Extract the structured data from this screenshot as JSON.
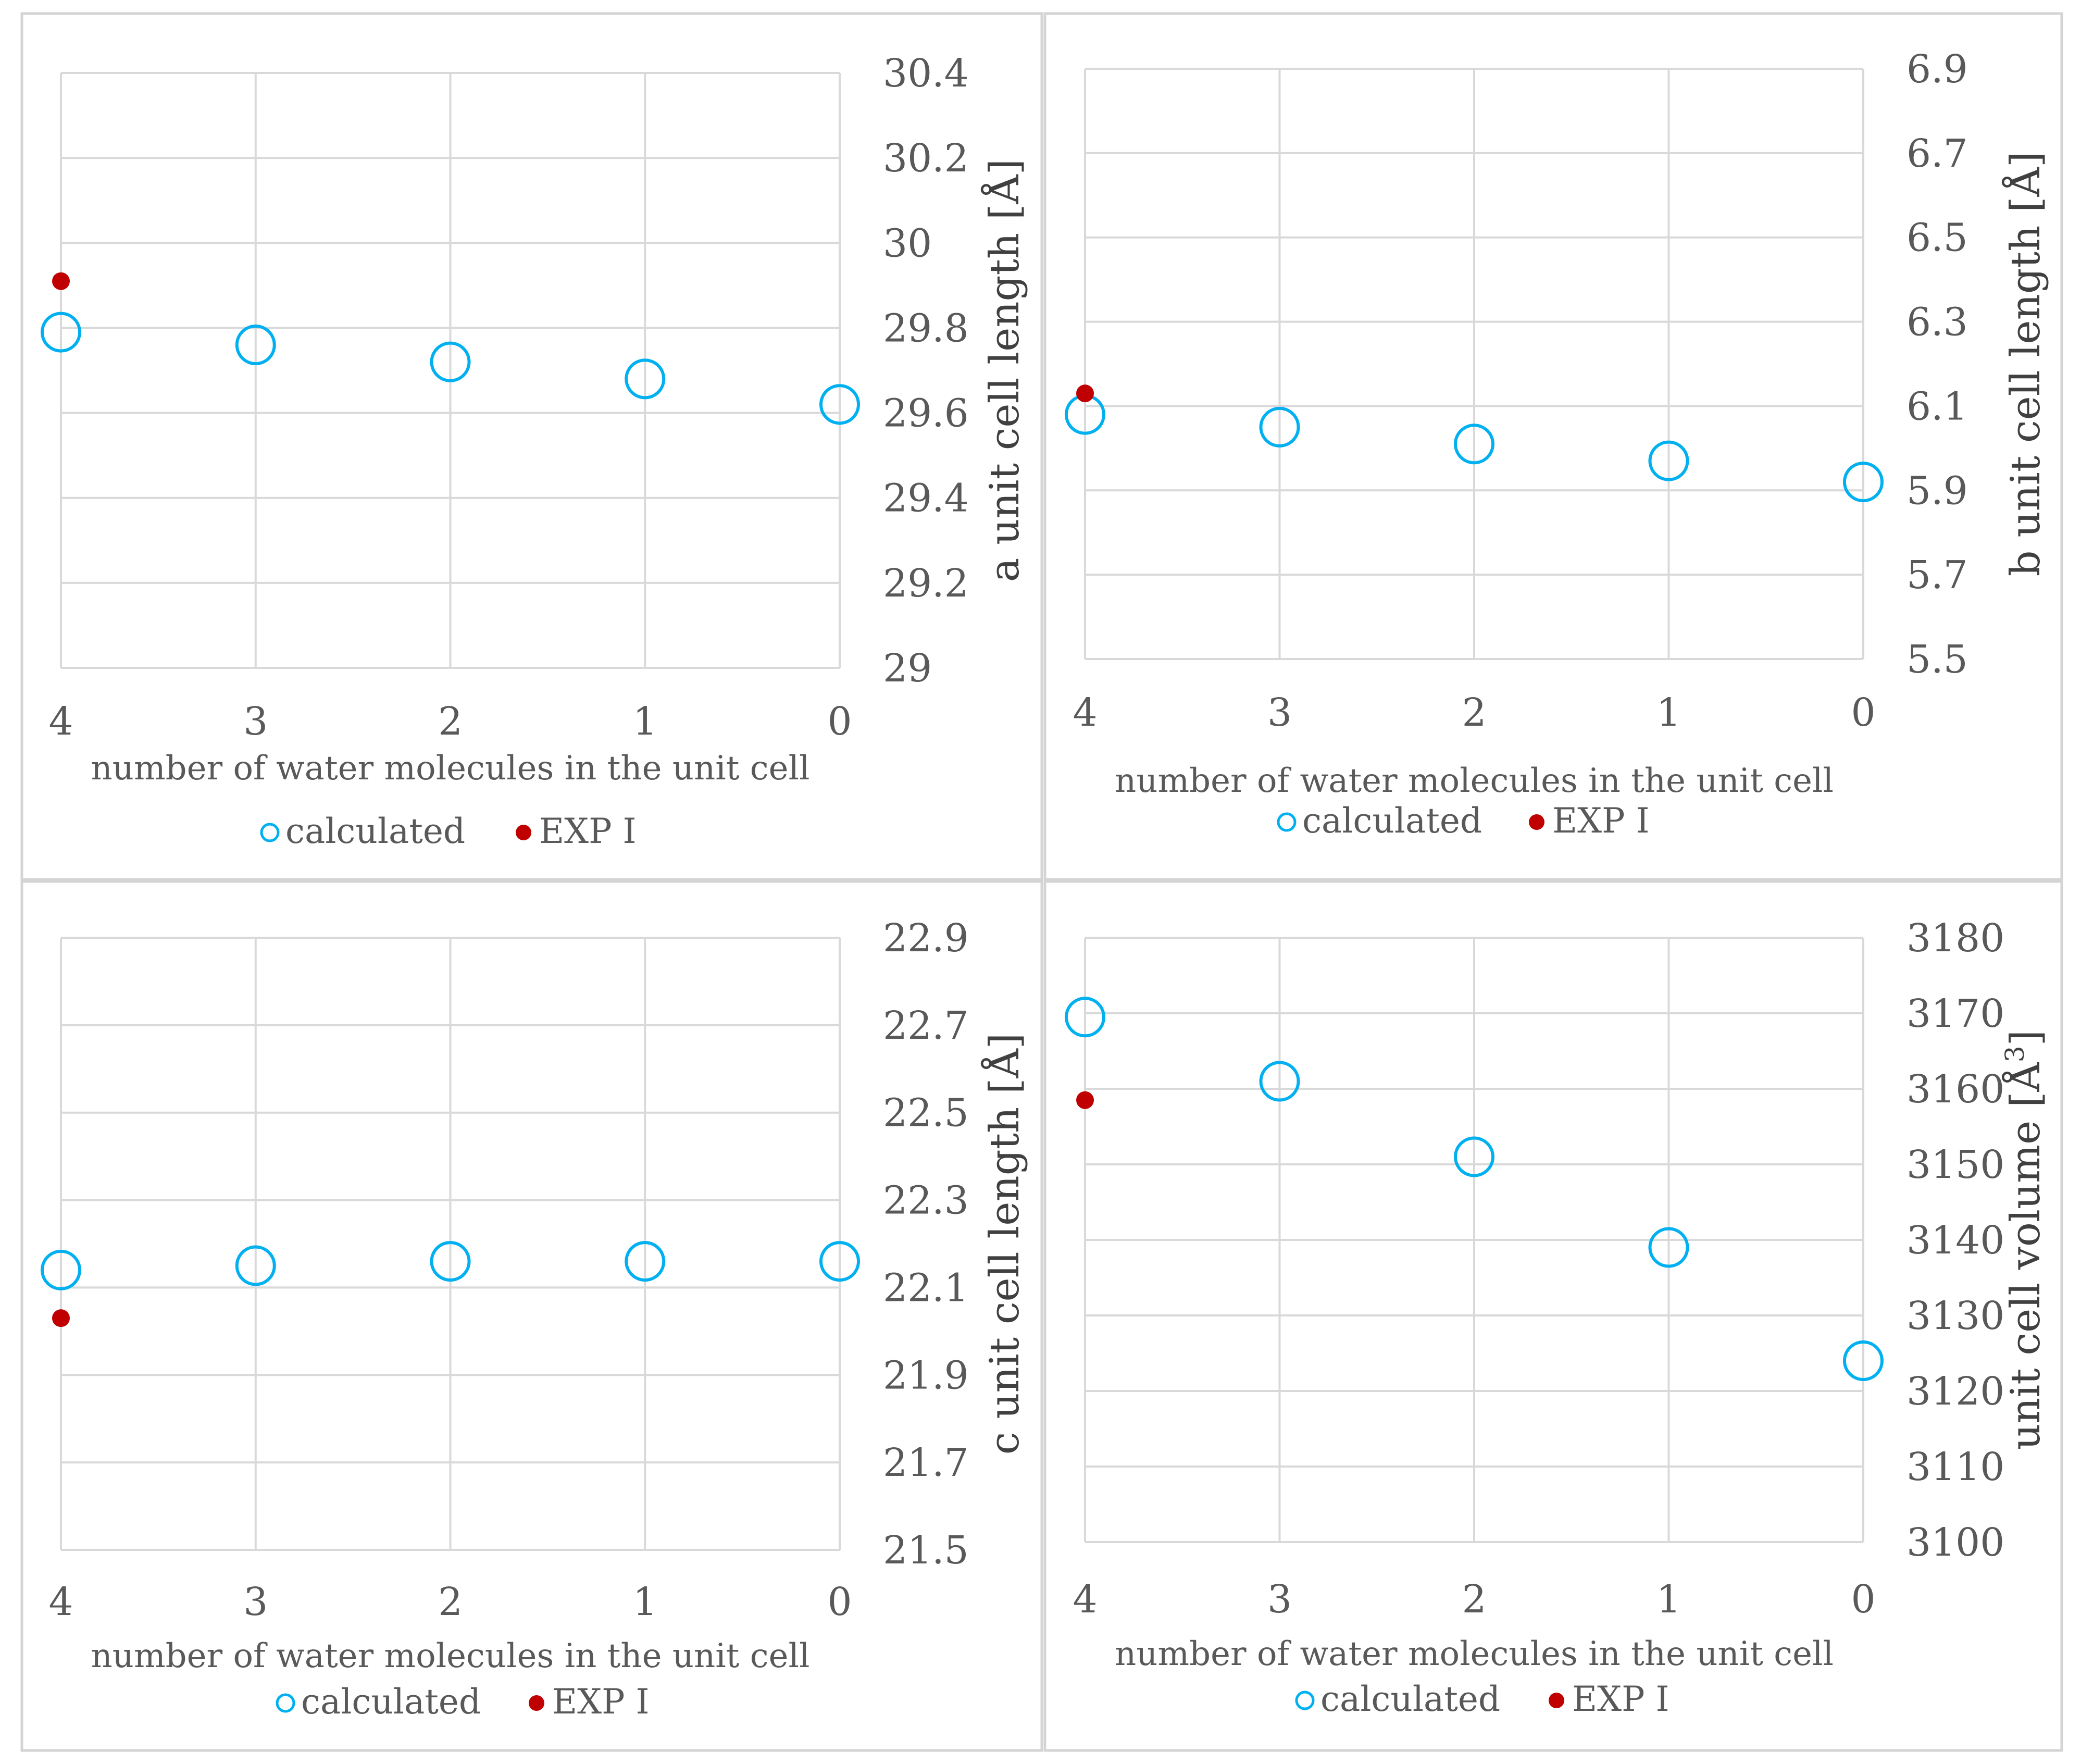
{
  "chart_data": [
    {
      "type": "scatter",
      "title": "",
      "xlabel": "number of water molecules in the unit cell",
      "ylabel": "a unit cell length [Å]",
      "ylabel_sup": "",
      "x_ticks": [
        "4",
        "3",
        "2",
        "1",
        "0"
      ],
      "x_order": "descending",
      "ylim": [
        29,
        30.4
      ],
      "y_ticks": [
        "30.4",
        "30.2",
        "30",
        "29.8",
        "29.6",
        "29.4",
        "29.2",
        "29"
      ],
      "y_axis_side": "right",
      "grid": true,
      "legend_position": "bottom",
      "series": [
        {
          "name": "calculated",
          "marker": "open-circle",
          "color": "#00B0F0",
          "x": [
            4,
            3,
            2,
            1,
            0
          ],
          "y": [
            29.79,
            29.76,
            29.72,
            29.68,
            29.62
          ]
        },
        {
          "name": "EXP I",
          "marker": "filled-circle",
          "color": "#C00000",
          "x": [
            4
          ],
          "y": [
            29.91
          ]
        }
      ]
    },
    {
      "type": "scatter",
      "title": "",
      "xlabel": "number of water molecules in the unit cell",
      "ylabel": "b unit cell length [Å]",
      "ylabel_sup": "",
      "x_ticks": [
        "4",
        "3",
        "2",
        "1",
        "0"
      ],
      "x_order": "descending",
      "ylim": [
        5.5,
        6.9
      ],
      "y_ticks": [
        "6.9",
        "6.7",
        "6.5",
        "6.3",
        "6.1",
        "5.9",
        "5.7",
        "5.5"
      ],
      "y_axis_side": "right",
      "grid": true,
      "legend_position": "bottom",
      "series": [
        {
          "name": "calculated",
          "marker": "open-circle",
          "color": "#00B0F0",
          "x": [
            4,
            3,
            2,
            1,
            0
          ],
          "y": [
            6.08,
            6.05,
            6.01,
            5.97,
            5.92
          ]
        },
        {
          "name": "EXP I",
          "marker": "filled-circle",
          "color": "#C00000",
          "x": [
            4
          ],
          "y": [
            6.13
          ]
        }
      ]
    },
    {
      "type": "scatter",
      "title": "",
      "xlabel": "number of water molecules in the unit cell",
      "ylabel": "c unit cell length [Å]",
      "ylabel_sup": "",
      "x_ticks": [
        "4",
        "3",
        "2",
        "1",
        "0"
      ],
      "x_order": "descending",
      "ylim": [
        21.5,
        22.9
      ],
      "y_ticks": [
        "22.9",
        "22.7",
        "22.5",
        "22.3",
        "22.1",
        "21.9",
        "21.7",
        "21.5"
      ],
      "y_axis_side": "right",
      "grid": true,
      "legend_position": "bottom",
      "series": [
        {
          "name": "calculated",
          "marker": "open-circle",
          "color": "#00B0F0",
          "x": [
            4,
            3,
            2,
            1,
            0
          ],
          "y": [
            22.14,
            22.15,
            22.16,
            22.16,
            22.16
          ]
        },
        {
          "name": "EXP I",
          "marker": "filled-circle",
          "color": "#C00000",
          "x": [
            4
          ],
          "y": [
            22.03
          ]
        }
      ]
    },
    {
      "type": "scatter",
      "title": "",
      "xlabel": "number of water molecules in the unit cell",
      "ylabel": "unit cell volume [Å",
      "ylabel_sup": "3",
      "ylabel_suffix": "]",
      "x_ticks": [
        "4",
        "3",
        "2",
        "1",
        "0"
      ],
      "x_order": "descending",
      "ylim": [
        3100,
        3180
      ],
      "y_ticks": [
        "3180",
        "3170",
        "3160",
        "3150",
        "3140",
        "3130",
        "3120",
        "3110",
        "3100"
      ],
      "y_axis_side": "right",
      "grid": true,
      "legend_position": "bottom",
      "series": [
        {
          "name": "calculated",
          "marker": "open-circle",
          "color": "#00B0F0",
          "x": [
            4,
            3,
            2,
            1,
            0
          ],
          "y": [
            3169.5,
            3161,
            3151,
            3139,
            3124
          ]
        },
        {
          "name": "EXP I",
          "marker": "filled-circle",
          "color": "#C00000",
          "x": [
            4
          ],
          "y": [
            3158.5
          ]
        }
      ]
    }
  ]
}
